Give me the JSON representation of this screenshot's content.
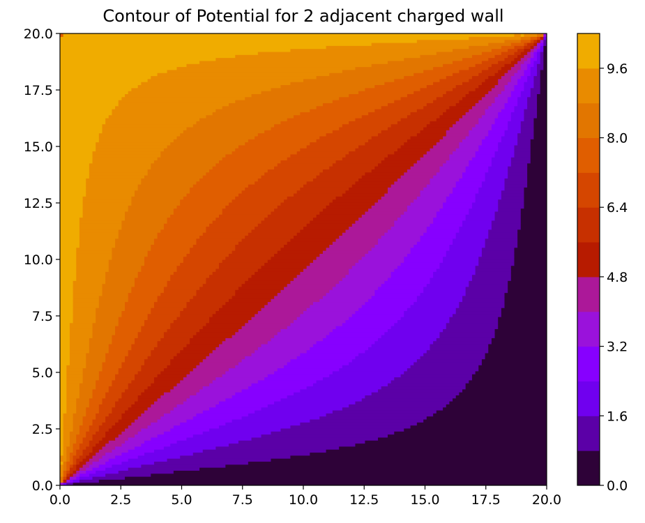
{
  "chart_data": {
    "type": "contour",
    "title": "Contour of Potential for 2 adjacent charged wall",
    "xlabel": "",
    "ylabel": "",
    "xlim": [
      0,
      20
    ],
    "ylim": [
      0,
      20
    ],
    "x_ticks": [
      "0.0",
      "2.5",
      "5.0",
      "7.5",
      "10.0",
      "12.5",
      "15.0",
      "17.5",
      "20.0"
    ],
    "y_ticks": [
      "0.0",
      "2.5",
      "5.0",
      "7.5",
      "10.0",
      "12.5",
      "15.0",
      "17.5",
      "20.0"
    ],
    "colorbar": {
      "ticks": [
        "0.0",
        "1.6",
        "3.2",
        "4.8",
        "6.4",
        "8.0",
        "9.6"
      ],
      "tick_values": [
        0,
        1.6,
        3.2,
        4.8,
        6.4,
        8.0,
        9.6
      ],
      "level_range": [
        0,
        10.4
      ],
      "level_step": 0.8,
      "level_colors": [
        "#2e0238",
        "#5b00a7",
        "#7000ef",
        "#8700ff",
        "#9a12db",
        "#ac1899",
        "#b71b00",
        "#c73000",
        "#d54600",
        "#e05e00",
        "#e27600",
        "#e98b00",
        "#f0ac00"
      ]
    },
    "z_field": {
      "description_of_rendering": "",
      "boundary_conditions": {
        "top_wall_y20": 10,
        "left_wall_x0": 10,
        "bottom_wall_y0": 0,
        "right_wall_x20": 0
      }
    },
    "colormap": "gnuplot",
    "grid": false
  }
}
